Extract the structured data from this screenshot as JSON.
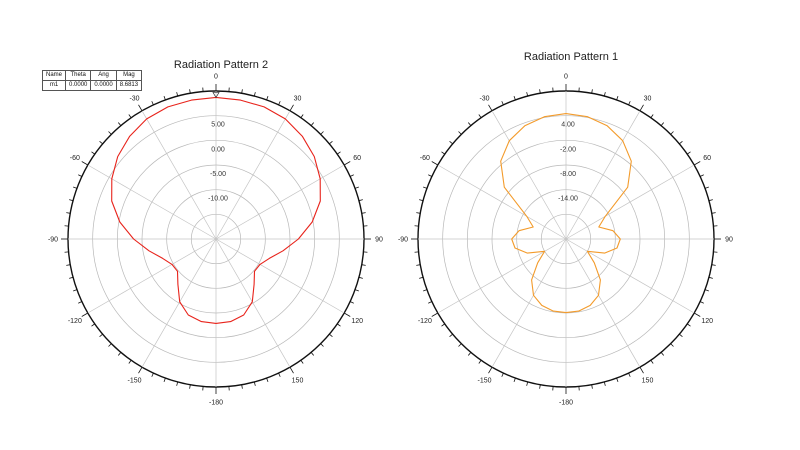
{
  "chart_data": [
    {
      "type": "polar",
      "title": "Radiation Pattern 2",
      "angle_labels": [
        "0",
        "30",
        "60",
        "90",
        "120",
        "150",
        "-180",
        "-150",
        "-120",
        "-90",
        "-60",
        "-30"
      ],
      "radial_tick_labels": [
        "5.00",
        "0.00",
        "-5.00",
        "-10.00"
      ],
      "rlim": [
        -20,
        10
      ],
      "rticks": [
        -15,
        -10,
        -5,
        0,
        5,
        10
      ],
      "grid": true,
      "series": [
        {
          "color": "#e8231b",
          "theta": [
            0,
            10,
            20,
            30,
            40,
            50,
            60,
            70,
            80,
            90,
            100,
            110,
            120,
            130,
            140,
            150,
            160,
            170,
            180,
            190,
            200,
            210,
            220,
            230,
            240,
            250,
            260,
            270,
            280,
            290,
            300,
            310,
            320,
            330,
            340,
            350
          ],
          "values": [
            8.7,
            8.6,
            8.5,
            8.1,
            7.2,
            6.0,
            4.4,
            2.5,
            -0.2,
            -3.3,
            -6.2,
            -8.5,
            -9.7,
            -9.8,
            -8.0,
            -5.3,
            -3.6,
            -3.0,
            -2.9,
            -3.0,
            -3.6,
            -5.3,
            -8.0,
            -9.8,
            -9.7,
            -8.5,
            -6.2,
            -3.3,
            -0.2,
            2.5,
            4.4,
            6.0,
            7.2,
            8.1,
            8.5,
            8.6
          ]
        }
      ],
      "marker_table": {
        "headers": [
          "Name",
          "Theta",
          "Ang",
          "Mag"
        ],
        "row": [
          "m1",
          "0.0000",
          "0.0000",
          "8.6813"
        ]
      }
    },
    {
      "type": "polar",
      "title": "Radiation Pattern 1",
      "angle_labels": [
        "0",
        "30",
        "60",
        "90",
        "120",
        "150",
        "-180",
        "-150",
        "-120",
        "-90",
        "-60",
        "-30"
      ],
      "radial_tick_labels": [
        "4.00",
        "-2.00",
        "-8.00",
        "-14.00"
      ],
      "rlim": [
        -26,
        10
      ],
      "rticks": [
        -20,
        -14,
        -8,
        -2,
        4,
        10
      ],
      "grid": true,
      "series": [
        {
          "color": "#f39b2b",
          "theta": [
            0,
            10,
            20,
            30,
            40,
            50,
            60,
            70,
            80,
            90,
            100,
            110,
            120,
            130,
            140,
            150,
            160,
            170,
            180,
            190,
            200,
            210,
            220,
            230,
            240,
            250,
            260,
            270,
            280,
            290,
            300,
            310,
            320,
            330,
            340,
            350
          ],
          "values": [
            4.5,
            4.2,
            3.3,
            1.6,
            -1.3,
            -6.4,
            -15.0,
            -17.5,
            -14.4,
            -12.8,
            -13.4,
            -16.0,
            -20.0,
            -17.0,
            -13.0,
            -10.2,
            -8.8,
            -8.2,
            -8.1,
            -8.2,
            -8.8,
            -10.2,
            -13.0,
            -17.0,
            -20.0,
            -16.0,
            -13.4,
            -12.8,
            -14.4,
            -17.5,
            -15.0,
            -6.4,
            -1.3,
            1.6,
            3.3,
            4.2
          ]
        }
      ]
    }
  ]
}
